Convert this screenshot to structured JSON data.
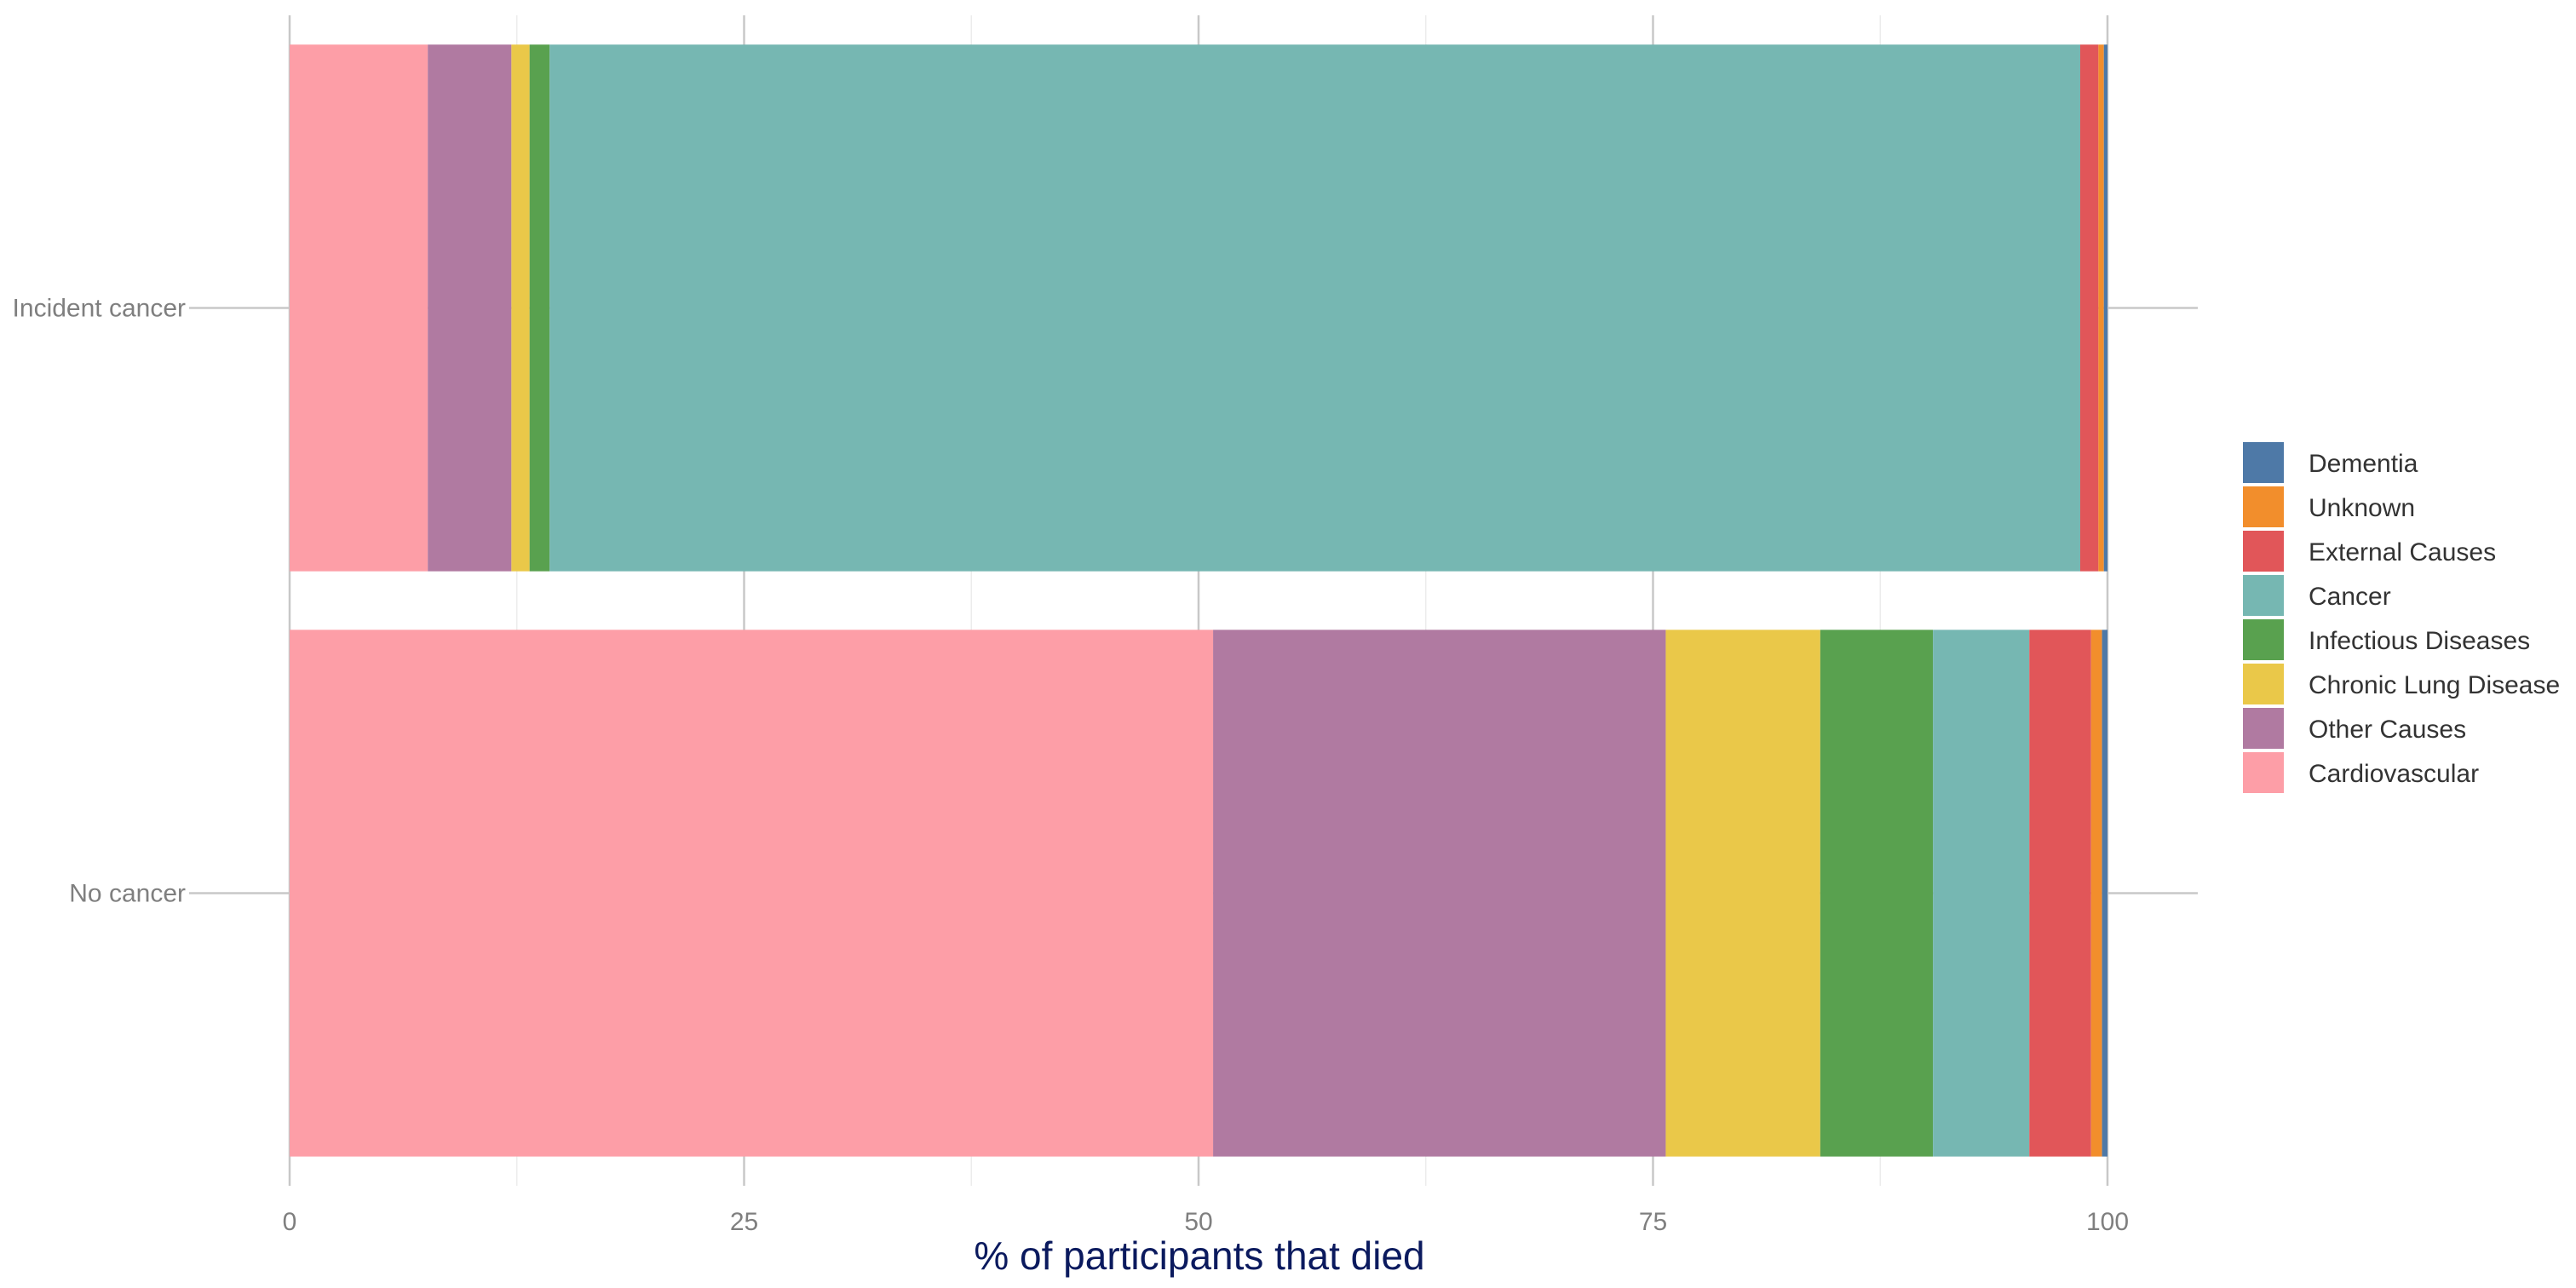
{
  "chart_data": {
    "type": "bar",
    "orientation": "horizontal",
    "stacked": true,
    "xlabel": "% of participants that died",
    "ylabel": "",
    "xlim": [
      0,
      100
    ],
    "xticks": [
      0,
      25,
      50,
      75,
      100
    ],
    "grid": true,
    "legend_position": "right",
    "categories": [
      "Incident cancer",
      "No cancer"
    ],
    "series": [
      {
        "name": "Cardiovascular",
        "color": "#fd9ea7",
        "values": [
          7.6,
          50.8
        ]
      },
      {
        "name": "Other Causes",
        "color": "#b07aa1",
        "values": [
          4.6,
          24.9
        ]
      },
      {
        "name": "Chronic Lung Disease",
        "color": "#eac849",
        "values": [
          1.0,
          8.5
        ]
      },
      {
        "name": "Infectious Diseases",
        "color": "#59a14f",
        "values": [
          1.1,
          6.2
        ]
      },
      {
        "name": "Cancer",
        "color": "#76b7b2",
        "values": [
          84.2,
          5.3
        ]
      },
      {
        "name": "External Causes",
        "color": "#e15659",
        "values": [
          1.0,
          3.4
        ]
      },
      {
        "name": "Unknown",
        "color": "#f28e2c",
        "values": [
          0.3,
          0.6
        ]
      },
      {
        "name": "Dementia",
        "color": "#4e79a7",
        "values": [
          0.2,
          0.3
        ]
      }
    ],
    "legend_order": [
      "Dementia",
      "Unknown",
      "External Causes",
      "Cancer",
      "Infectious Diseases",
      "Chronic Lung Disease",
      "Other Causes",
      "Cardiovascular"
    ]
  }
}
